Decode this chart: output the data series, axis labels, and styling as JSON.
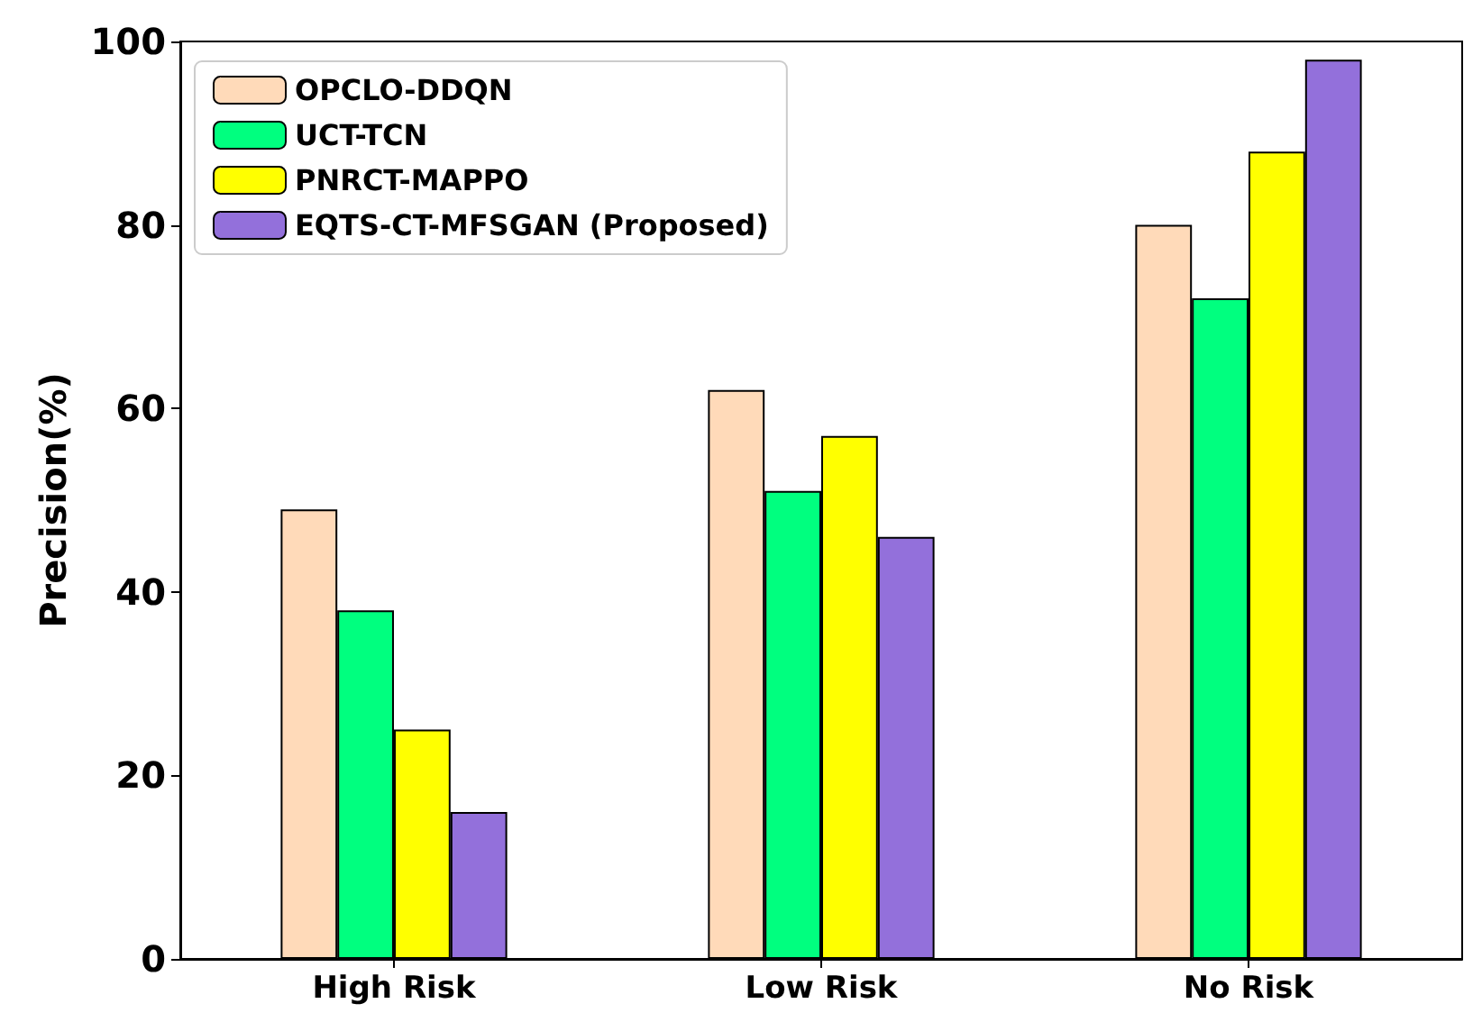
{
  "chart_data": {
    "type": "bar",
    "ylabel": "Precision(%)",
    "categories": [
      "High Risk",
      "Low Risk",
      "No Risk"
    ],
    "series": [
      {
        "name": "OPCLO-DDQN",
        "color": "#ffdab9",
        "values": [
          49,
          62,
          80
        ]
      },
      {
        "name": "UCT-TCN",
        "color": "#00ff7f",
        "values": [
          38,
          51,
          72
        ]
      },
      {
        "name": "PNRCT-MAPPO",
        "color": "#ffff00",
        "values": [
          25,
          57,
          88
        ]
      },
      {
        "name": "EQTS-CT-MFSGAN (Proposed)",
        "color": "#9370db",
        "values": [
          16,
          46,
          98
        ]
      }
    ],
    "ylim": [
      0,
      100
    ],
    "yticks": [
      0,
      20,
      40,
      60,
      80,
      100
    ],
    "grid": false,
    "legend": "top left"
  }
}
